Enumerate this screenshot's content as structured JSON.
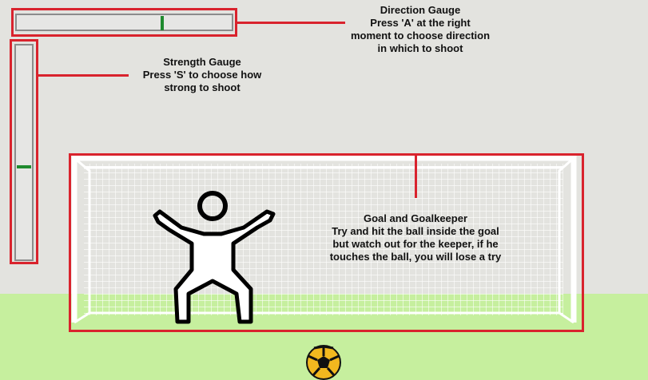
{
  "hud": {
    "direction_gauge": {
      "title": "Direction Gauge",
      "line1": "Press 'A' at the right",
      "line2": "moment to choose direction",
      "line3": "in which to shoot",
      "level": 0.68
    },
    "strength_gauge": {
      "title": "Strength Gauge",
      "line1": "Press 'S' to choose how",
      "line2": "strong to shoot",
      "level": 0.43
    },
    "goal": {
      "title": "Goal and Goalkeeper",
      "line1": "Try and hit the ball inside the goal",
      "line2": "but watch out for the keeper, if  he",
      "line3": "touches the ball, you will lose a try"
    }
  },
  "colors": {
    "annotation": "#d9232d",
    "marker": "#1f8a2e",
    "grass": "#c6ef9e",
    "background": "#e3e3df"
  },
  "icons": {
    "keeper": "goalkeeper-stick-figure-icon",
    "ball": "soccer-ball-icon"
  }
}
